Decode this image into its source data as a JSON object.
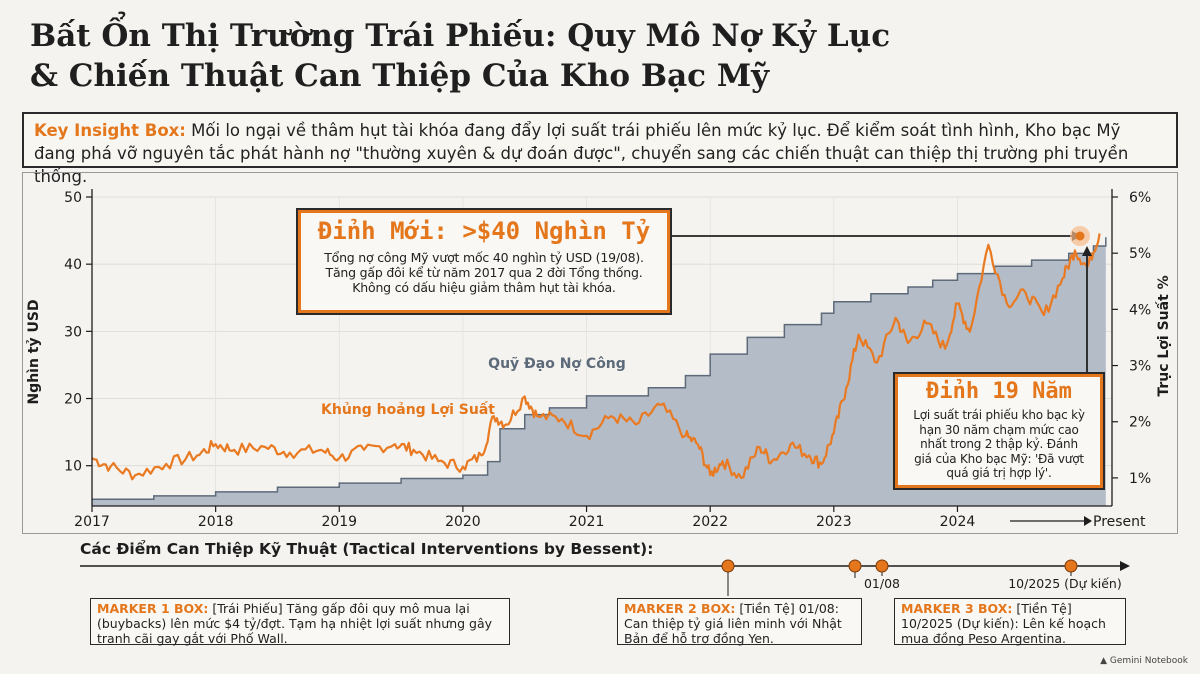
{
  "title_lines": [
    "Bất Ổn Thị Trường Trái Phiếu: Quy Mô Nợ Kỷ Lục",
    "& Chiến Thuật Can Thiệp Của Kho Bạc Mỹ"
  ],
  "insight": {
    "label": "Key Insight Box:",
    "text": "Mối lo ngại về thâm hụt tài khóa đang đẩy lợi suất trái phiếu lên mức kỷ lục. Để kiểm soát tình hình, Kho bạc Mỹ đang phá vỡ nguyên tắc phát hành nợ \"thường xuyên & dự đoán được\", chuyển sang các chiến thuật can thiệp thị trường phi truyền thống."
  },
  "colors": {
    "accent": "#e4761c",
    "area": "#b4bcc8",
    "debt_line": "#5d6a7a",
    "yield_line": "#e97a22"
  },
  "chart_data": {
    "type": "area",
    "ylabel": "Nghìn tỷ USD",
    "y2label": "Trục Lợi Suất %",
    "ylim": [
      4,
      50
    ],
    "y2lim": [
      0.5,
      6
    ],
    "yticks": [
      10,
      20,
      30,
      40,
      50
    ],
    "y2ticks": [
      "1%",
      "2%",
      "3%",
      "4%",
      "5%",
      "6%"
    ],
    "xlim": [
      2017,
      2025.25
    ],
    "xticks": [
      "2017",
      "2018",
      "2019",
      "2020",
      "2021",
      "2022",
      "2023",
      "2024"
    ],
    "present_label": "Present",
    "series": [
      {
        "name": "Quỹ Đạo Nợ Công",
        "kind": "step-area",
        "x": [
          2017.0,
          2017.5,
          2018.0,
          2018.5,
          2019.0,
          2019.5,
          2020.0,
          2020.2,
          2020.3,
          2020.5,
          2020.7,
          2021.0,
          2021.5,
          2021.8,
          2022.0,
          2022.3,
          2022.6,
          2022.9,
          2023.0,
          2023.3,
          2023.6,
          2023.8,
          2024.0,
          2024.3,
          2024.6,
          2024.9,
          2025.1,
          2025.2
        ],
        "values": [
          5,
          5.5,
          6.1,
          6.8,
          7.4,
          8.1,
          8.6,
          10.6,
          15.5,
          17.6,
          18.6,
          20.4,
          21.6,
          23.4,
          26.6,
          29.1,
          31.0,
          32.7,
          34.4,
          35.6,
          36.6,
          37.6,
          38.6,
          39.7,
          40.6,
          41.6,
          42.7,
          44
        ]
      },
      {
        "name": "Lợi suất",
        "kind": "line",
        "x": [
          2017.0,
          2017.15,
          2017.35,
          2017.6,
          2017.85,
          2018.0,
          2018.15,
          2018.4,
          2018.6,
          2018.85,
          2019.0,
          2019.2,
          2019.45,
          2019.6,
          2019.8,
          2020.0,
          2020.15,
          2020.25,
          2020.35,
          2020.5,
          2020.6,
          2020.8,
          2021.0,
          2021.2,
          2021.4,
          2021.6,
          2021.8,
          2021.9,
          2022.0,
          2022.1,
          2022.25,
          2022.4,
          2022.5,
          2022.65,
          2022.8,
          2022.9,
          2023.0,
          2023.1,
          2023.2,
          2023.35,
          2023.5,
          2023.6,
          2023.75,
          2023.9,
          2024.0,
          2024.1,
          2024.25,
          2024.4,
          2024.55,
          2024.7,
          2024.85,
          2024.95,
          2025.05,
          2025.15
        ],
        "values": [
          1.35,
          1.2,
          1.05,
          1.25,
          1.4,
          1.6,
          1.5,
          1.55,
          1.45,
          1.5,
          1.35,
          1.5,
          1.6,
          1.5,
          1.3,
          1.2,
          1.4,
          2.1,
          1.95,
          2.45,
          2.1,
          2.05,
          1.75,
          2.1,
          1.95,
          2.3,
          1.75,
          1.6,
          1.05,
          1.3,
          1.0,
          1.55,
          1.3,
          1.6,
          1.4,
          1.25,
          1.8,
          2.6,
          3.55,
          3.05,
          3.85,
          3.4,
          3.75,
          3.3,
          4.1,
          3.6,
          5.15,
          4.1,
          4.3,
          3.9,
          4.55,
          5.05,
          4.75,
          5.35
        ]
      }
    ],
    "annotations": {
      "debt_label": "Quỹ Đạo Nợ Công",
      "yield_label": "Khủng hoảng Lợi Suất"
    }
  },
  "callouts": {
    "debt_peak": {
      "headline": "Đỉnh Mới: >$40 Nghìn Tỷ",
      "lines": [
        "Tổng nợ công Mỹ vượt mốc 40 nghìn tỷ USD (19/08).",
        "Tăng gấp đôi kể từ năm 2017 qua 2 đời Tổng thống.",
        "Không có dấu hiệu giảm thâm hụt tài khóa."
      ]
    },
    "yield_peak": {
      "headline": "Đỉnh 19 Năm",
      "lines": [
        "Lợi suất trái phiếu kho bạc kỳ",
        "hạn 30 năm chạm mức cao",
        "nhất trong 2 thập kỷ. Đánh",
        "giá của Kho bạc Mỹ: 'Đã vượt",
        "quá giá trị hợp lý'."
      ]
    }
  },
  "timeline": {
    "title": "Các Điểm Can Thiệp Kỹ Thuật (Tactical Interventions by Bessent):",
    "tick_labels": [
      "01/08",
      "10/2025 (Dự kiến)"
    ],
    "markers": [
      {
        "label": "MARKER 1 BOX:",
        "tag": "[Trái Phiếu]",
        "text": "Tăng gấp đôi quy mô mua lại (buybacks) lên mức $4 tỷ/đợt. Tạm hạ nhiệt lợi suất nhưng gây tranh cãi gay gắt với Phố Wall."
      },
      {
        "label": "MARKER 2 BOX:",
        "tag": "[Tiền Tệ]",
        "text": "01/08: Can thiệp tỷ giá liên minh với Nhật Bản để hỗ trợ đồng Yen."
      },
      {
        "label": "MARKER 3 BOX:",
        "tag": "[Tiền Tệ]",
        "text": "10/2025 (Dự kiến): Lên kế hoạch mua đồng Peso Argentina."
      }
    ]
  },
  "watermark": "Gemini Notebook"
}
